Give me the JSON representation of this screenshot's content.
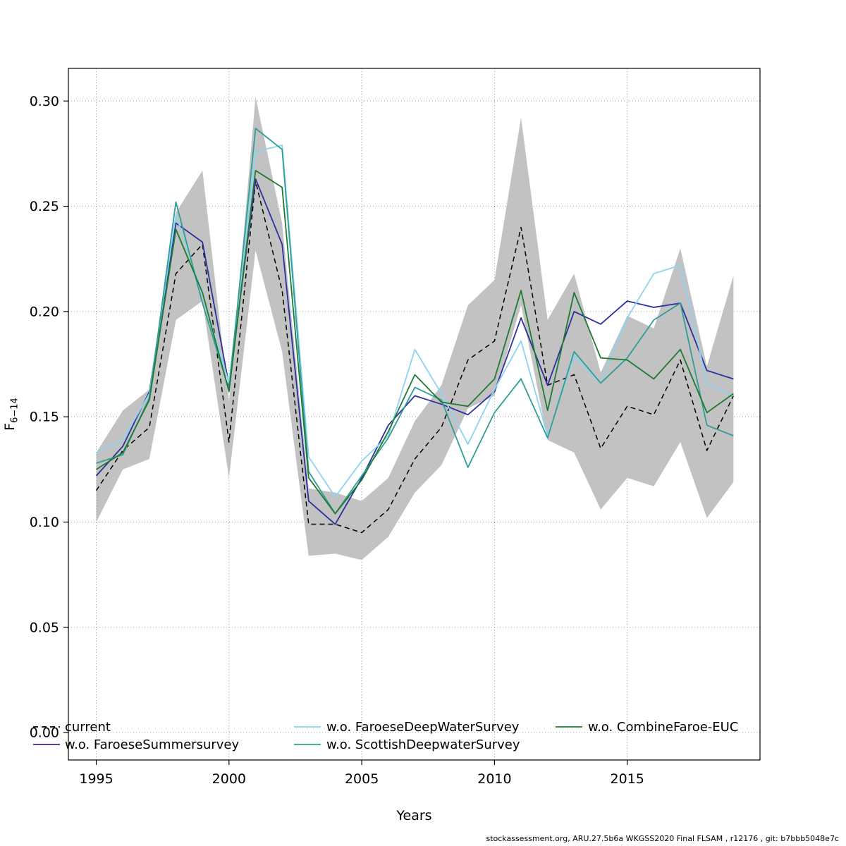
{
  "footer": "stockassessment.org, ARU.27.5b6a WKGSS2020 Final FLSAM , r12176 , git: b7bbb5048e7c",
  "chart_data": {
    "type": "line",
    "title": "",
    "xlabel": "Years",
    "ylabel": "F",
    "ylabel_sub": "6−14",
    "xlim": [
      1993.95,
      2020.0
    ],
    "ylim": [
      -0.013,
      0.3155
    ],
    "x_ticks": [
      1995,
      2000,
      2005,
      2010,
      2015
    ],
    "y_ticks": [
      0.0,
      0.05,
      0.1,
      0.15,
      0.2,
      0.25,
      0.3
    ],
    "y_tick_labels": [
      "0.00",
      "0.05",
      "0.10",
      "0.15",
      "0.20",
      "0.25",
      "0.30"
    ],
    "grid": true,
    "legend_position": "bottom-inside",
    "years": [
      1995,
      1996,
      1997,
      1998,
      1999,
      2000,
      2001,
      2002,
      2003,
      2004,
      2005,
      2006,
      2007,
      2008,
      2009,
      2010,
      2011,
      2012,
      2013,
      2014,
      2015,
      2016,
      2017,
      2018,
      2019
    ],
    "band": {
      "series": "current",
      "color": "#c2c2c2",
      "lower": [
        0.1,
        0.125,
        0.13,
        0.196,
        0.205,
        0.121,
        0.229,
        0.181,
        0.084,
        0.085,
        0.082,
        0.093,
        0.114,
        0.127,
        0.154,
        0.16,
        0.203,
        0.139,
        0.133,
        0.106,
        0.121,
        0.117,
        0.138,
        0.102,
        0.119
      ],
      "upper": [
        0.133,
        0.153,
        0.163,
        0.247,
        0.267,
        0.157,
        0.302,
        0.242,
        0.116,
        0.114,
        0.11,
        0.121,
        0.148,
        0.165,
        0.203,
        0.215,
        0.292,
        0.196,
        0.218,
        0.171,
        0.198,
        0.192,
        0.23,
        0.174,
        0.217
      ]
    },
    "series": [
      {
        "name": "current",
        "color": "#000000",
        "dash": "7 5",
        "width": 1.5,
        "values": [
          0.115,
          0.134,
          0.145,
          0.218,
          0.232,
          0.138,
          0.262,
          0.21,
          0.099,
          0.099,
          0.095,
          0.106,
          0.13,
          0.145,
          0.177,
          0.186,
          0.24,
          0.165,
          0.17,
          0.135,
          0.155,
          0.151,
          0.177,
          0.134,
          0.16
        ]
      },
      {
        "name": "w.o. FaroeseSummersurvey",
        "color": "#2d2f9e",
        "dash": null,
        "width": 1.8,
        "values": [
          0.122,
          0.136,
          0.162,
          0.242,
          0.233,
          0.165,
          0.263,
          0.232,
          0.11,
          0.099,
          0.121,
          0.146,
          0.16,
          0.156,
          0.151,
          0.162,
          0.197,
          0.165,
          0.2,
          0.194,
          0.205,
          0.202,
          0.204,
          0.172,
          0.168
        ]
      },
      {
        "name": "w.o. FaroeseDeepWaterSurvey",
        "color": "#8ed3f0",
        "dash": null,
        "width": 1.8,
        "values": [
          0.133,
          0.139,
          0.161,
          0.246,
          0.208,
          0.166,
          0.276,
          0.279,
          0.131,
          0.112,
          0.129,
          0.141,
          0.182,
          0.161,
          0.137,
          0.163,
          0.186,
          0.141,
          0.179,
          0.166,
          0.197,
          0.218,
          0.222,
          0.166,
          0.16
        ]
      },
      {
        "name": "w.o. ScottishDeepwaterSurvey",
        "color": "#2f9e94",
        "dash": null,
        "width": 1.8,
        "values": [
          0.128,
          0.132,
          0.159,
          0.252,
          0.204,
          0.163,
          0.287,
          0.277,
          0.124,
          0.104,
          0.122,
          0.14,
          0.164,
          0.158,
          0.126,
          0.152,
          0.168,
          0.14,
          0.181,
          0.166,
          0.178,
          0.196,
          0.204,
          0.146,
          0.141
        ]
      },
      {
        "name": "w.o. CombineFaroe-EUC",
        "color": "#1e7a34",
        "dash": null,
        "width": 1.8,
        "values": [
          0.125,
          0.133,
          0.158,
          0.239,
          0.209,
          0.162,
          0.267,
          0.259,
          0.121,
          0.104,
          0.12,
          0.143,
          0.17,
          0.157,
          0.155,
          0.168,
          0.21,
          0.153,
          0.209,
          0.178,
          0.177,
          0.168,
          0.182,
          0.152,
          0.161
        ]
      }
    ],
    "legend": {
      "columns": [
        [
          "current",
          "w.o. FaroeseSummersurvey"
        ],
        [
          "w.o. FaroeseDeepWaterSurvey",
          "w.o. ScottishDeepwaterSurvey"
        ],
        [
          "w.o. CombineFaroe-EUC"
        ]
      ]
    }
  }
}
